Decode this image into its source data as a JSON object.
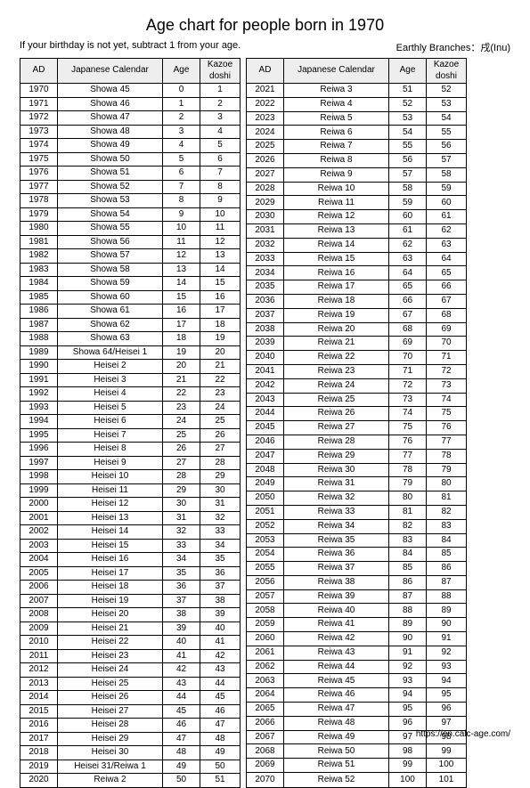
{
  "title": "Age chart for people born in 1970",
  "note": "If your birthday is not yet, subtract 1 from your age.",
  "branches": "Earthly Branches：戌(Inu)",
  "footer_url": "https://en.calc-age.com/",
  "headers": {
    "ad": "AD",
    "jp": "Japanese Calendar",
    "age": "Age",
    "kz": "Kazoe doshi"
  },
  "left": [
    {
      "ad": "1970",
      "jp": "Showa 45",
      "age": "0",
      "kz": "1"
    },
    {
      "ad": "1971",
      "jp": "Showa 46",
      "age": "1",
      "kz": "2"
    },
    {
      "ad": "1972",
      "jp": "Showa 47",
      "age": "2",
      "kz": "3"
    },
    {
      "ad": "1973",
      "jp": "Showa 48",
      "age": "3",
      "kz": "4"
    },
    {
      "ad": "1974",
      "jp": "Showa 49",
      "age": "4",
      "kz": "5"
    },
    {
      "ad": "1975",
      "jp": "Showa 50",
      "age": "5",
      "kz": "6"
    },
    {
      "ad": "1976",
      "jp": "Showa 51",
      "age": "6",
      "kz": "7"
    },
    {
      "ad": "1977",
      "jp": "Showa 52",
      "age": "7",
      "kz": "8"
    },
    {
      "ad": "1978",
      "jp": "Showa 53",
      "age": "8",
      "kz": "9"
    },
    {
      "ad": "1979",
      "jp": "Showa 54",
      "age": "9",
      "kz": "10"
    },
    {
      "ad": "1980",
      "jp": "Showa 55",
      "age": "10",
      "kz": "11"
    },
    {
      "ad": "1981",
      "jp": "Showa 56",
      "age": "11",
      "kz": "12"
    },
    {
      "ad": "1982",
      "jp": "Showa 57",
      "age": "12",
      "kz": "13"
    },
    {
      "ad": "1983",
      "jp": "Showa 58",
      "age": "13",
      "kz": "14"
    },
    {
      "ad": "1984",
      "jp": "Showa 59",
      "age": "14",
      "kz": "15"
    },
    {
      "ad": "1985",
      "jp": "Showa 60",
      "age": "15",
      "kz": "16"
    },
    {
      "ad": "1986",
      "jp": "Showa 61",
      "age": "16",
      "kz": "17"
    },
    {
      "ad": "1987",
      "jp": "Showa 62",
      "age": "17",
      "kz": "18"
    },
    {
      "ad": "1988",
      "jp": "Showa 63",
      "age": "18",
      "kz": "19"
    },
    {
      "ad": "1989",
      "jp": "Showa 64/Heisei 1",
      "age": "19",
      "kz": "20"
    },
    {
      "ad": "1990",
      "jp": "Heisei 2",
      "age": "20",
      "kz": "21"
    },
    {
      "ad": "1991",
      "jp": "Heisei 3",
      "age": "21",
      "kz": "22"
    },
    {
      "ad": "1992",
      "jp": "Heisei 4",
      "age": "22",
      "kz": "23"
    },
    {
      "ad": "1993",
      "jp": "Heisei 5",
      "age": "23",
      "kz": "24"
    },
    {
      "ad": "1994",
      "jp": "Heisei 6",
      "age": "24",
      "kz": "25"
    },
    {
      "ad": "1995",
      "jp": "Heisei 7",
      "age": "25",
      "kz": "26"
    },
    {
      "ad": "1996",
      "jp": "Heisei 8",
      "age": "26",
      "kz": "27"
    },
    {
      "ad": "1997",
      "jp": "Heisei 9",
      "age": "27",
      "kz": "28"
    },
    {
      "ad": "1998",
      "jp": "Heisei 10",
      "age": "28",
      "kz": "29"
    },
    {
      "ad": "1999",
      "jp": "Heisei 11",
      "age": "29",
      "kz": "30"
    },
    {
      "ad": "2000",
      "jp": "Heisei 12",
      "age": "30",
      "kz": "31"
    },
    {
      "ad": "2001",
      "jp": "Heisei 13",
      "age": "31",
      "kz": "32"
    },
    {
      "ad": "2002",
      "jp": "Heisei 14",
      "age": "32",
      "kz": "33"
    },
    {
      "ad": "2003",
      "jp": "Heisei 15",
      "age": "33",
      "kz": "34"
    },
    {
      "ad": "2004",
      "jp": "Heisei 16",
      "age": "34",
      "kz": "35"
    },
    {
      "ad": "2005",
      "jp": "Heisei 17",
      "age": "35",
      "kz": "36"
    },
    {
      "ad": "2006",
      "jp": "Heisei 18",
      "age": "36",
      "kz": "37"
    },
    {
      "ad": "2007",
      "jp": "Heisei 19",
      "age": "37",
      "kz": "38"
    },
    {
      "ad": "2008",
      "jp": "Heisei 20",
      "age": "38",
      "kz": "39"
    },
    {
      "ad": "2009",
      "jp": "Heisei 21",
      "age": "39",
      "kz": "40"
    },
    {
      "ad": "2010",
      "jp": "Heisei 22",
      "age": "40",
      "kz": "41"
    },
    {
      "ad": "2011",
      "jp": "Heisei 23",
      "age": "41",
      "kz": "42"
    },
    {
      "ad": "2012",
      "jp": "Heisei 24",
      "age": "42",
      "kz": "43"
    },
    {
      "ad": "2013",
      "jp": "Heisei 25",
      "age": "43",
      "kz": "44"
    },
    {
      "ad": "2014",
      "jp": "Heisei 26",
      "age": "44",
      "kz": "45"
    },
    {
      "ad": "2015",
      "jp": "Heisei 27",
      "age": "45",
      "kz": "46"
    },
    {
      "ad": "2016",
      "jp": "Heisei 28",
      "age": "46",
      "kz": "47"
    },
    {
      "ad": "2017",
      "jp": "Heisei 29",
      "age": "47",
      "kz": "48"
    },
    {
      "ad": "2018",
      "jp": "Heisei 30",
      "age": "48",
      "kz": "49"
    },
    {
      "ad": "2019",
      "jp": "Heisei 31/Reiwa 1",
      "age": "49",
      "kz": "50"
    },
    {
      "ad": "2020",
      "jp": "Reiwa 2",
      "age": "50",
      "kz": "51"
    }
  ],
  "right": [
    {
      "ad": "2021",
      "jp": "Reiwa 3",
      "age": "51",
      "kz": "52"
    },
    {
      "ad": "2022",
      "jp": "Reiwa 4",
      "age": "52",
      "kz": "53"
    },
    {
      "ad": "2023",
      "jp": "Reiwa 5",
      "age": "53",
      "kz": "54"
    },
    {
      "ad": "2024",
      "jp": "Reiwa 6",
      "age": "54",
      "kz": "55"
    },
    {
      "ad": "2025",
      "jp": "Reiwa 7",
      "age": "55",
      "kz": "56"
    },
    {
      "ad": "2026",
      "jp": "Reiwa 8",
      "age": "56",
      "kz": "57"
    },
    {
      "ad": "2027",
      "jp": "Reiwa 9",
      "age": "57",
      "kz": "58"
    },
    {
      "ad": "2028",
      "jp": "Reiwa 10",
      "age": "58",
      "kz": "59"
    },
    {
      "ad": "2029",
      "jp": "Reiwa 11",
      "age": "59",
      "kz": "60"
    },
    {
      "ad": "2030",
      "jp": "Reiwa 12",
      "age": "60",
      "kz": "61"
    },
    {
      "ad": "2031",
      "jp": "Reiwa 13",
      "age": "61",
      "kz": "62"
    },
    {
      "ad": "2032",
      "jp": "Reiwa 14",
      "age": "62",
      "kz": "63"
    },
    {
      "ad": "2033",
      "jp": "Reiwa 15",
      "age": "63",
      "kz": "64"
    },
    {
      "ad": "2034",
      "jp": "Reiwa 16",
      "age": "64",
      "kz": "65"
    },
    {
      "ad": "2035",
      "jp": "Reiwa 17",
      "age": "65",
      "kz": "66"
    },
    {
      "ad": "2036",
      "jp": "Reiwa 18",
      "age": "66",
      "kz": "67"
    },
    {
      "ad": "2037",
      "jp": "Reiwa 19",
      "age": "67",
      "kz": "68"
    },
    {
      "ad": "2038",
      "jp": "Reiwa 20",
      "age": "68",
      "kz": "69"
    },
    {
      "ad": "2039",
      "jp": "Reiwa 21",
      "age": "69",
      "kz": "70"
    },
    {
      "ad": "2040",
      "jp": "Reiwa 22",
      "age": "70",
      "kz": "71"
    },
    {
      "ad": "2041",
      "jp": "Reiwa 23",
      "age": "71",
      "kz": "72"
    },
    {
      "ad": "2042",
      "jp": "Reiwa 24",
      "age": "72",
      "kz": "73"
    },
    {
      "ad": "2043",
      "jp": "Reiwa 25",
      "age": "73",
      "kz": "74"
    },
    {
      "ad": "2044",
      "jp": "Reiwa 26",
      "age": "74",
      "kz": "75"
    },
    {
      "ad": "2045",
      "jp": "Reiwa 27",
      "age": "75",
      "kz": "76"
    },
    {
      "ad": "2046",
      "jp": "Reiwa 28",
      "age": "76",
      "kz": "77"
    },
    {
      "ad": "2047",
      "jp": "Reiwa 29",
      "age": "77",
      "kz": "78"
    },
    {
      "ad": "2048",
      "jp": "Reiwa 30",
      "age": "78",
      "kz": "79"
    },
    {
      "ad": "2049",
      "jp": "Reiwa 31",
      "age": "79",
      "kz": "80"
    },
    {
      "ad": "2050",
      "jp": "Reiwa 32",
      "age": "80",
      "kz": "81"
    },
    {
      "ad": "2051",
      "jp": "Reiwa 33",
      "age": "81",
      "kz": "82"
    },
    {
      "ad": "2052",
      "jp": "Reiwa 34",
      "age": "82",
      "kz": "83"
    },
    {
      "ad": "2053",
      "jp": "Reiwa 35",
      "age": "83",
      "kz": "84"
    },
    {
      "ad": "2054",
      "jp": "Reiwa 36",
      "age": "84",
      "kz": "85"
    },
    {
      "ad": "2055",
      "jp": "Reiwa 37",
      "age": "85",
      "kz": "86"
    },
    {
      "ad": "2056",
      "jp": "Reiwa 38",
      "age": "86",
      "kz": "87"
    },
    {
      "ad": "2057",
      "jp": "Reiwa 39",
      "age": "87",
      "kz": "88"
    },
    {
      "ad": "2058",
      "jp": "Reiwa 40",
      "age": "88",
      "kz": "89"
    },
    {
      "ad": "2059",
      "jp": "Reiwa 41",
      "age": "89",
      "kz": "90"
    },
    {
      "ad": "2060",
      "jp": "Reiwa 42",
      "age": "90",
      "kz": "91"
    },
    {
      "ad": "2061",
      "jp": "Reiwa 43",
      "age": "91",
      "kz": "92"
    },
    {
      "ad": "2062",
      "jp": "Reiwa 44",
      "age": "92",
      "kz": "93"
    },
    {
      "ad": "2063",
      "jp": "Reiwa 45",
      "age": "93",
      "kz": "94"
    },
    {
      "ad": "2064",
      "jp": "Reiwa 46",
      "age": "94",
      "kz": "95"
    },
    {
      "ad": "2065",
      "jp": "Reiwa 47",
      "age": "95",
      "kz": "96"
    },
    {
      "ad": "2066",
      "jp": "Reiwa 48",
      "age": "96",
      "kz": "97"
    },
    {
      "ad": "2067",
      "jp": "Reiwa 49",
      "age": "97",
      "kz": "98"
    },
    {
      "ad": "2068",
      "jp": "Reiwa 50",
      "age": "98",
      "kz": "99"
    },
    {
      "ad": "2069",
      "jp": "Reiwa 51",
      "age": "99",
      "kz": "100"
    },
    {
      "ad": "2070",
      "jp": "Reiwa 52",
      "age": "100",
      "kz": "101"
    }
  ]
}
